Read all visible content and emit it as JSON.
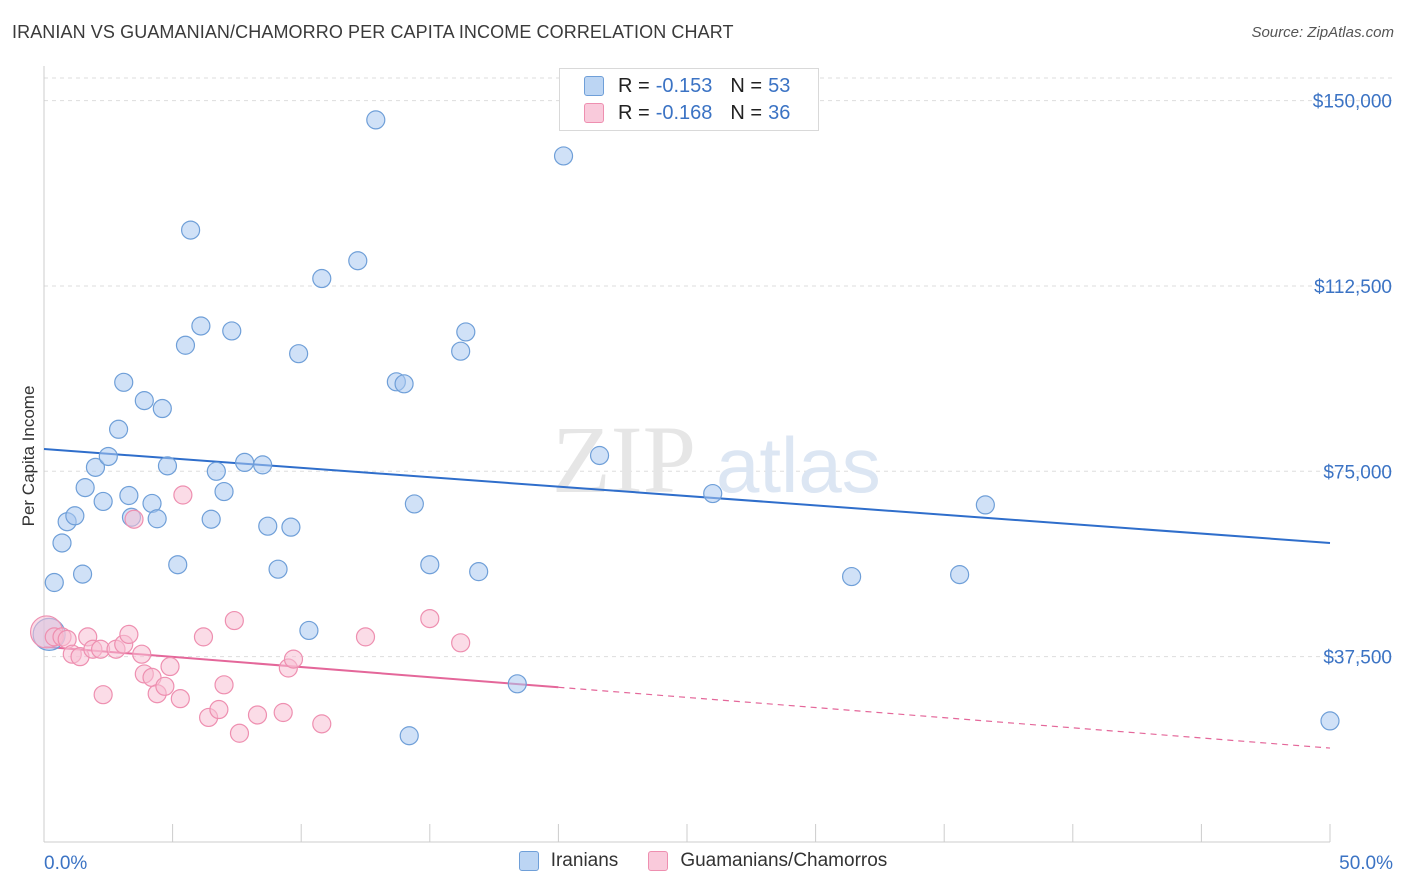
{
  "title": "IRANIAN VS GUAMANIAN/CHAMORRO PER CAPITA INCOME CORRELATION CHART",
  "source": "Source: ZipAtlas.com",
  "watermark": {
    "zip": "ZIP",
    "atlas": "atlas"
  },
  "legend": {
    "rows": [
      {
        "r_label": "R = ",
        "r_value": "-0.153",
        "n_label": "N = ",
        "n_value": "53",
        "color": "#6f9fd8"
      },
      {
        "r_label": "R = ",
        "r_value": "-0.168",
        "n_label": "N = ",
        "n_value": "36",
        "color": "#ee8fb0"
      }
    ]
  },
  "chart_data": {
    "type": "scatter",
    "title": "IRANIAN VS GUAMANIAN/CHAMORRO PER CAPITA INCOME CORRELATION CHART",
    "xlabel": "",
    "ylabel": "Per Capita Income",
    "xlim": [
      0,
      50
    ],
    "ylim": [
      0,
      157000
    ],
    "x_tick_labels": [
      "0.0%",
      "50.0%"
    ],
    "y_ticks": [
      37500,
      75000,
      112500,
      150000
    ],
    "y_tick_labels": [
      "$37,500",
      "$75,000",
      "$112,500",
      "$150,000"
    ],
    "grid": true,
    "legend_position": "bottom-center",
    "series": [
      {
        "name": "Iranians",
        "color": "#6f9fd8",
        "fill": "#aac9f0",
        "trend": {
          "x": [
            0,
            50
          ],
          "y": [
            79500,
            60500
          ],
          "dashed_from": null
        },
        "points": [
          [
            0.4,
            52500
          ],
          [
            0.7,
            60500
          ],
          [
            0.9,
            64800
          ],
          [
            1.2,
            66000
          ],
          [
            1.5,
            54200
          ],
          [
            1.6,
            71700
          ],
          [
            2.0,
            75800
          ],
          [
            2.3,
            68900
          ],
          [
            2.5,
            78000
          ],
          [
            2.9,
            83500
          ],
          [
            3.1,
            93000
          ],
          [
            3.3,
            70100
          ],
          [
            3.4,
            65700
          ],
          [
            3.9,
            89300
          ],
          [
            4.2,
            68500
          ],
          [
            4.4,
            65400
          ],
          [
            4.6,
            87700
          ],
          [
            4.8,
            76100
          ],
          [
            5.2,
            56100
          ],
          [
            5.5,
            100500
          ],
          [
            5.7,
            123800
          ],
          [
            6.1,
            104400
          ],
          [
            6.5,
            65300
          ],
          [
            6.7,
            75000
          ],
          [
            7.0,
            70900
          ],
          [
            7.3,
            103400
          ],
          [
            7.8,
            76800
          ],
          [
            8.5,
            76300
          ],
          [
            8.7,
            63900
          ],
          [
            9.1,
            55200
          ],
          [
            9.6,
            63700
          ],
          [
            9.9,
            98800
          ],
          [
            10.3,
            42800
          ],
          [
            10.8,
            114000
          ],
          [
            12.2,
            117600
          ],
          [
            12.9,
            146100
          ],
          [
            13.7,
            93100
          ],
          [
            14.0,
            92700
          ],
          [
            14.4,
            68400
          ],
          [
            14.2,
            21500
          ],
          [
            15.0,
            56100
          ],
          [
            16.2,
            99300
          ],
          [
            16.4,
            103200
          ],
          [
            16.9,
            54700
          ],
          [
            18.4,
            32000
          ],
          [
            20.2,
            138800
          ],
          [
            21.6,
            78200
          ],
          [
            26.0,
            70500
          ],
          [
            31.4,
            53700
          ],
          [
            35.6,
            54100
          ],
          [
            36.6,
            68200
          ],
          [
            50.0,
            24500
          ],
          [
            0.2,
            42000
          ]
        ]
      },
      {
        "name": "Guamanians/Chamorros",
        "color": "#ee8fb0",
        "fill": "#f7bfd3",
        "trend": {
          "x": [
            0,
            50
          ],
          "y": [
            39500,
            19000
          ],
          "dashed_from": 20
        },
        "points": [
          [
            0.1,
            42500
          ],
          [
            0.4,
            41500
          ],
          [
            0.7,
            41500
          ],
          [
            0.9,
            41000
          ],
          [
            1.1,
            38000
          ],
          [
            1.4,
            37500
          ],
          [
            1.7,
            41500
          ],
          [
            1.9,
            39000
          ],
          [
            2.2,
            39000
          ],
          [
            2.3,
            29800
          ],
          [
            2.8,
            39000
          ],
          [
            3.1,
            40000
          ],
          [
            3.3,
            42000
          ],
          [
            3.5,
            65300
          ],
          [
            3.8,
            38000
          ],
          [
            3.9,
            34000
          ],
          [
            4.2,
            33300
          ],
          [
            4.4,
            30000
          ],
          [
            4.7,
            31500
          ],
          [
            4.9,
            35500
          ],
          [
            5.3,
            29000
          ],
          [
            5.4,
            70200
          ],
          [
            6.2,
            41500
          ],
          [
            6.4,
            25200
          ],
          [
            6.8,
            26800
          ],
          [
            7.0,
            31800
          ],
          [
            7.4,
            44800
          ],
          [
            7.6,
            22000
          ],
          [
            8.3,
            25700
          ],
          [
            9.3,
            26200
          ],
          [
            9.5,
            35200
          ],
          [
            9.7,
            37000
          ],
          [
            10.8,
            23900
          ],
          [
            12.5,
            41500
          ],
          [
            15.0,
            45200
          ],
          [
            16.2,
            40300
          ]
        ]
      }
    ]
  },
  "bottom_legend": [
    {
      "label": "Iranians",
      "color": "#6f9fd8"
    },
    {
      "label": "Guamanians/Chamorros",
      "color": "#ee8fb0"
    }
  ]
}
